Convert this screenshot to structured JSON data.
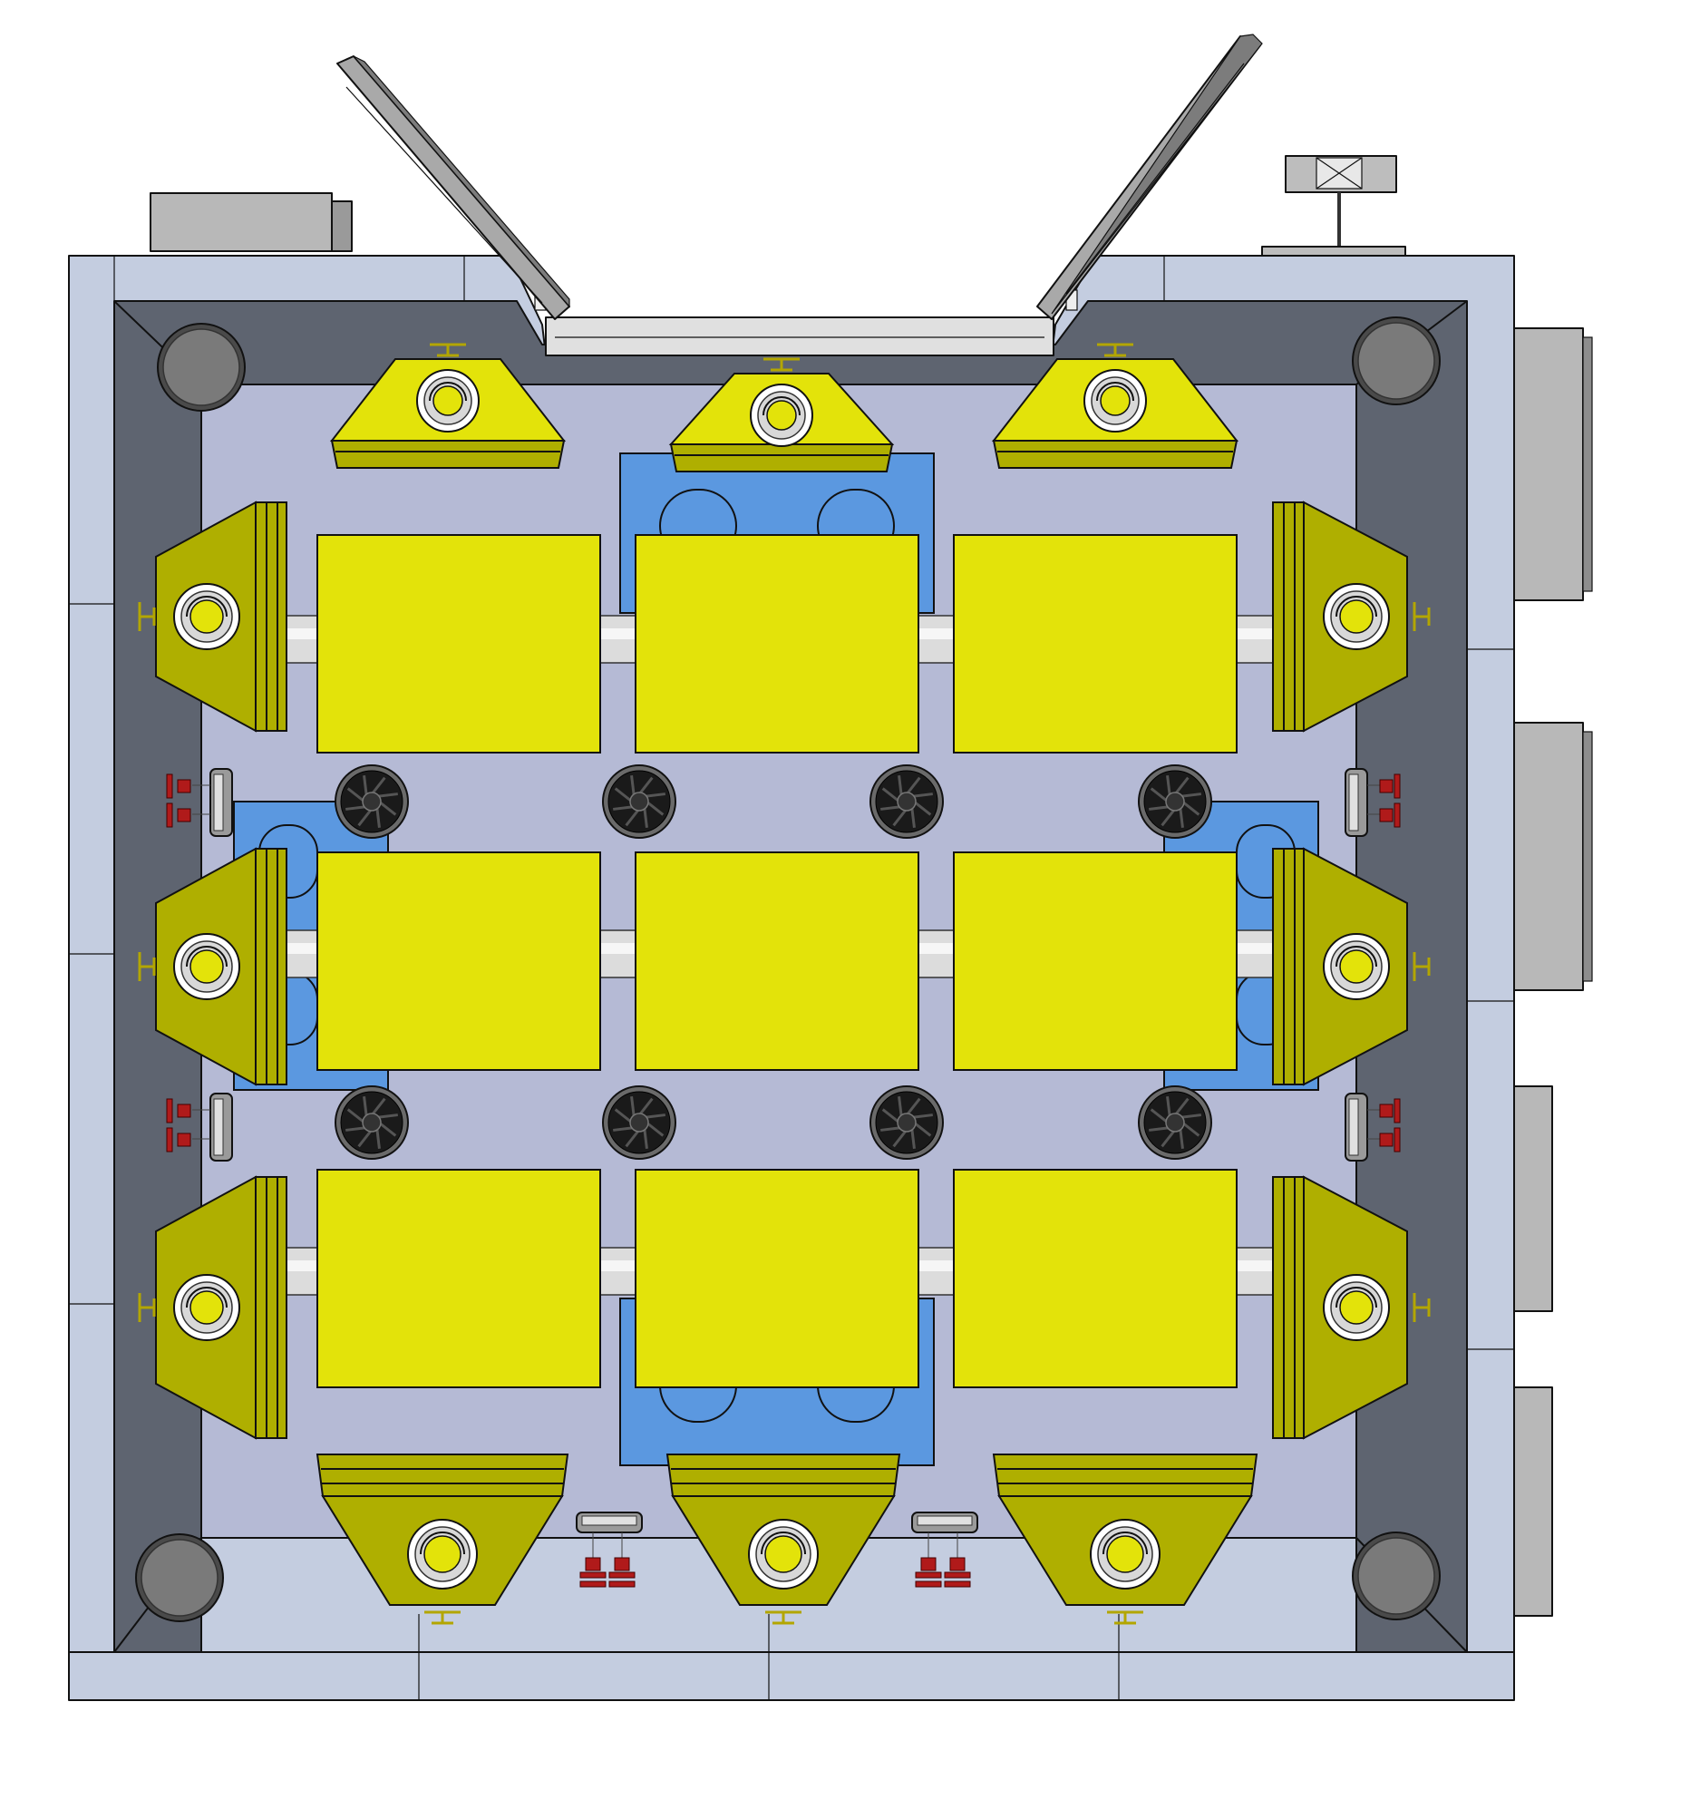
{
  "view": {
    "colors": {
      "outer_frame": "#c4cde0",
      "inner_wall": "#5e6470",
      "floor": "#b5bad5",
      "duct_plate": "#5b98e0",
      "enclosure": "#e3e30a",
      "enclosure_dark": "#afaf00",
      "fan_body": "#1a1a1a",
      "valve": "#b01a1a",
      "pipe": "#dcdcdc",
      "panel": "#bdbdbd"
    },
    "components": {
      "central_units": 9,
      "side_hoods": 12,
      "fans": 8,
      "corner_columns": 4,
      "hatch_doors": 2,
      "valve_clusters": 6
    }
  }
}
